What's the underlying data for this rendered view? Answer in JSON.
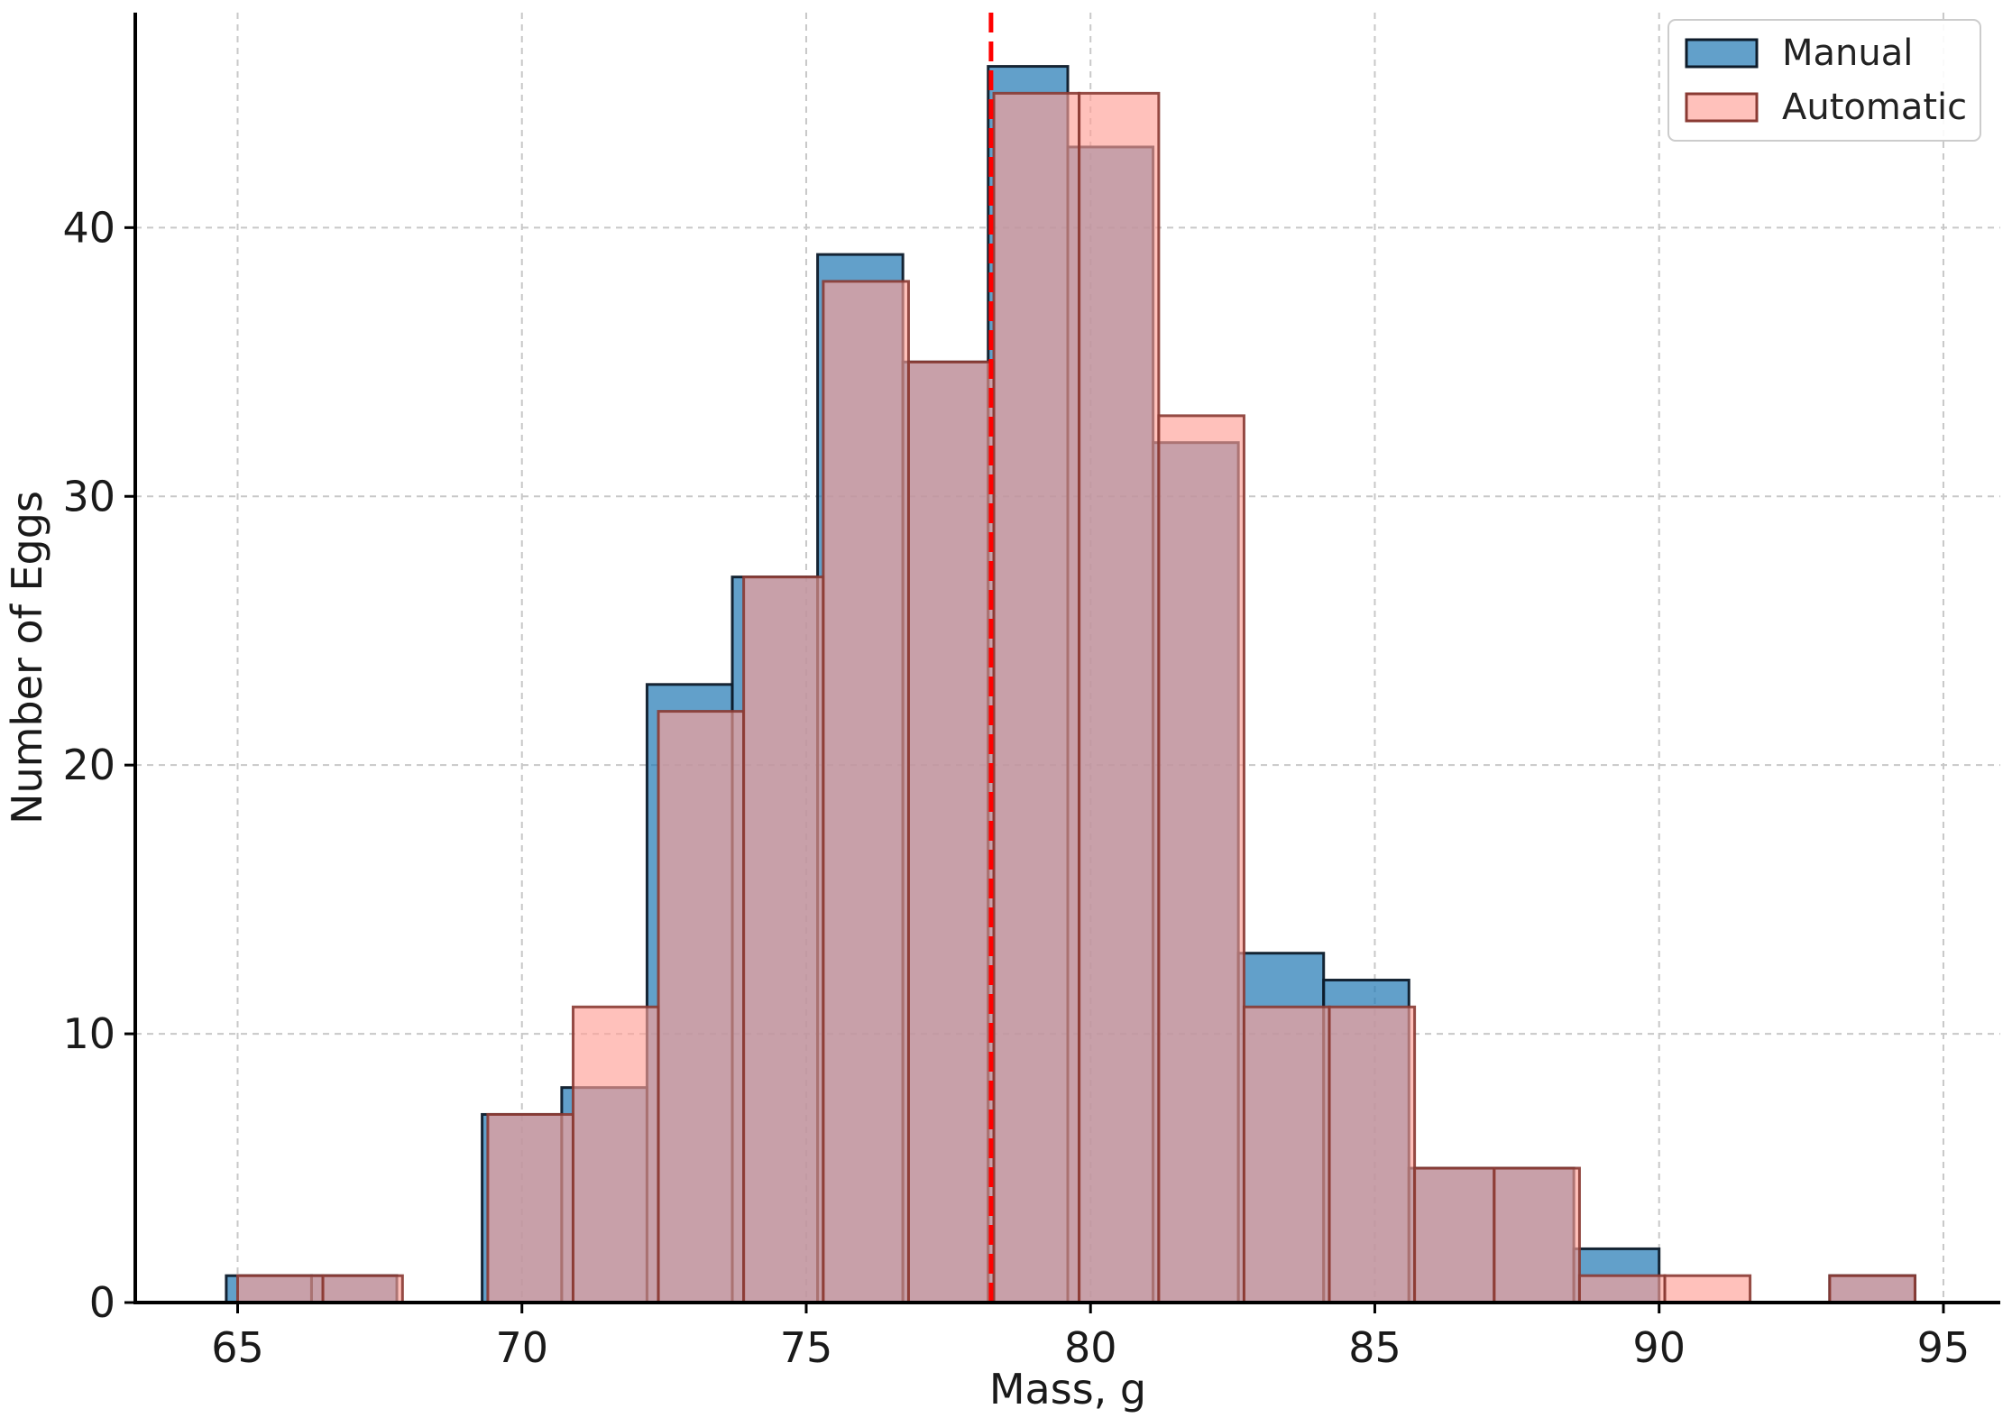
{
  "chart_data": {
    "type": "bar",
    "subtype": "overlaid-histogram",
    "xlabel": "Mass, g",
    "ylabel": "Number of Eggs",
    "xlim": [
      63.2,
      96.0
    ],
    "ylim": [
      0,
      48
    ],
    "xticks": [
      65,
      70,
      75,
      80,
      85,
      90,
      95
    ],
    "xtick_labels": [
      "65",
      "70",
      "75",
      "80",
      "85",
      "90",
      "95"
    ],
    "yticks": [
      0,
      10,
      20,
      30,
      40
    ],
    "ytick_labels": [
      "0",
      "10",
      "20",
      "30",
      "40"
    ],
    "grid": true,
    "legend_position": "top-right",
    "reference_line": {
      "x": 78.25,
      "color": "#ff0000",
      "style": "dashed"
    },
    "series": [
      {
        "name": "Manual",
        "color": "#1f77b4",
        "bins": [
          {
            "x0": 64.8,
            "x1": 66.3,
            "value": 1
          },
          {
            "x0": 66.3,
            "x1": 67.8,
            "value": 1
          },
          {
            "x0": 67.8,
            "x1": 69.3,
            "value": 0
          },
          {
            "x0": 69.3,
            "x1": 70.7,
            "value": 7
          },
          {
            "x0": 70.7,
            "x1": 72.2,
            "value": 8
          },
          {
            "x0": 72.2,
            "x1": 73.7,
            "value": 23
          },
          {
            "x0": 73.7,
            "x1": 75.2,
            "value": 27
          },
          {
            "x0": 75.2,
            "x1": 76.7,
            "value": 39
          },
          {
            "x0": 76.7,
            "x1": 78.2,
            "value": 35
          },
          {
            "x0": 78.2,
            "x1": 79.6,
            "value": 46
          },
          {
            "x0": 79.6,
            "x1": 81.1,
            "value": 43
          },
          {
            "x0": 81.1,
            "x1": 82.6,
            "value": 32
          },
          {
            "x0": 82.6,
            "x1": 84.1,
            "value": 13
          },
          {
            "x0": 84.1,
            "x1": 85.6,
            "value": 12
          },
          {
            "x0": 85.6,
            "x1": 87.1,
            "value": 5
          },
          {
            "x0": 87.1,
            "x1": 88.5,
            "value": 5
          },
          {
            "x0": 88.5,
            "x1": 90.0,
            "value": 2
          },
          {
            "x0": 90.0,
            "x1": 91.5,
            "value": 0
          },
          {
            "x0": 91.5,
            "x1": 93.0,
            "value": 0
          },
          {
            "x0": 93.0,
            "x1": 94.5,
            "value": 1
          }
        ]
      },
      {
        "name": "Automatic",
        "color": "#ff9f96",
        "bins": [
          {
            "x0": 65.0,
            "x1": 66.5,
            "value": 1
          },
          {
            "x0": 66.5,
            "x1": 67.9,
            "value": 1
          },
          {
            "x0": 67.9,
            "x1": 69.4,
            "value": 0
          },
          {
            "x0": 69.4,
            "x1": 70.9,
            "value": 7
          },
          {
            "x0": 70.9,
            "x1": 72.4,
            "value": 11
          },
          {
            "x0": 72.4,
            "x1": 73.9,
            "value": 22
          },
          {
            "x0": 73.9,
            "x1": 75.3,
            "value": 27
          },
          {
            "x0": 75.3,
            "x1": 76.8,
            "value": 38
          },
          {
            "x0": 76.8,
            "x1": 78.3,
            "value": 35
          },
          {
            "x0": 78.3,
            "x1": 79.8,
            "value": 45
          },
          {
            "x0": 79.8,
            "x1": 81.2,
            "value": 45
          },
          {
            "x0": 81.2,
            "x1": 82.7,
            "value": 33
          },
          {
            "x0": 82.7,
            "x1": 84.2,
            "value": 11
          },
          {
            "x0": 84.2,
            "x1": 85.7,
            "value": 11
          },
          {
            "x0": 85.7,
            "x1": 87.1,
            "value": 5
          },
          {
            "x0": 87.1,
            "x1": 88.6,
            "value": 5
          },
          {
            "x0": 88.6,
            "x1": 90.1,
            "value": 1
          },
          {
            "x0": 90.1,
            "x1": 91.6,
            "value": 1
          },
          {
            "x0": 91.6,
            "x1": 93.0,
            "value": 0
          },
          {
            "x0": 93.0,
            "x1": 94.5,
            "value": 1
          }
        ]
      }
    ]
  }
}
